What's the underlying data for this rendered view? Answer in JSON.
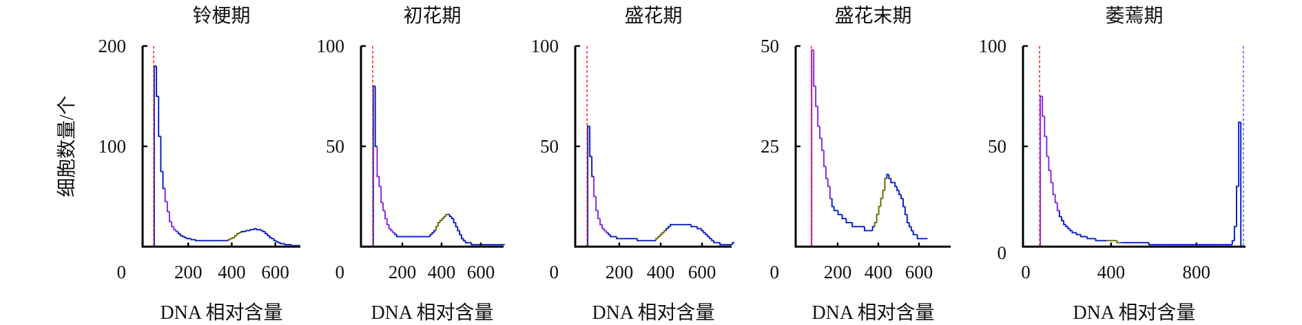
{
  "y_axis_label": "细胞数量/个",
  "colors": {
    "main": "#0a22c8",
    "g1": "#8a2be2",
    "s": "#6e6a00",
    "ref_line": "#ff2020",
    "ref_line2": "#4a6cf0",
    "axis": "#000000"
  },
  "chart_data": [
    {
      "type": "line",
      "title": "铃梗期",
      "xlabel": "DNA 相对含量",
      "ylabel": "细胞数量/个",
      "xlim": [
        0,
        715
      ],
      "ylim": [
        0,
        200
      ],
      "xticks": [
        200,
        400,
        600
      ],
      "xtick_labels": [
        "200",
        "400",
        "600"
      ],
      "yticks": [
        100,
        200
      ],
      "ytick_labels": [
        "100",
        "200"
      ],
      "origin_label": "0",
      "ref_line": 41,
      "x_start": 44,
      "bin": 10,
      "values": [
        180,
        150,
        110,
        75,
        58,
        45,
        35,
        25,
        20,
        17,
        15,
        13,
        11,
        10,
        9,
        8,
        8,
        7,
        7,
        6,
        6,
        6,
        6,
        6,
        6,
        6,
        6,
        6,
        6,
        6,
        6,
        6,
        6,
        6,
        7,
        8,
        9,
        11,
        13,
        14,
        15,
        15,
        16,
        16,
        17,
        17,
        18,
        17,
        17,
        16,
        15,
        13,
        11,
        9,
        8,
        6,
        5,
        4,
        3,
        3,
        2,
        2,
        2,
        1,
        1,
        1,
        1
      ],
      "segments": [
        {
          "from": 90,
          "to": 150,
          "color": "g1"
        },
        {
          "from": 380,
          "to": 440,
          "color": "s"
        }
      ]
    },
    {
      "type": "line",
      "title": "初花期",
      "xlabel": "DNA 相对含量",
      "ylabel": "",
      "xlim": [
        0,
        716
      ],
      "ylim": [
        0,
        100
      ],
      "xticks": [
        200,
        400,
        600
      ],
      "xtick_labels": [
        "200",
        "400",
        "600"
      ],
      "yticks": [
        50,
        100
      ],
      "ytick_labels": [
        "50",
        "100"
      ],
      "origin_label": "0",
      "ref_line": 49,
      "x_start": 52,
      "bin": 10,
      "values": [
        80,
        50,
        35,
        30,
        22,
        18,
        14,
        11,
        9,
        8,
        7,
        6,
        5,
        5,
        5,
        5,
        5,
        5,
        5,
        5,
        5,
        5,
        5,
        5,
        5,
        5,
        5,
        5,
        5,
        6,
        7,
        8,
        10,
        12,
        13,
        14,
        15,
        16,
        16,
        15,
        14,
        12,
        10,
        8,
        6,
        4,
        3,
        2,
        2,
        2,
        1,
        1,
        1,
        1,
        1,
        1,
        1,
        1,
        1,
        1,
        1,
        1,
        1,
        1,
        1,
        1,
        1
      ],
      "segments": [
        {
          "from": 70,
          "to": 160,
          "color": "g1"
        },
        {
          "from": 370,
          "to": 430,
          "color": "s"
        }
      ]
    },
    {
      "type": "line",
      "title": "盛花期",
      "xlabel": "DNA 相对含量",
      "ylabel": "",
      "xlim": [
        0,
        743
      ],
      "ylim": [
        0,
        100
      ],
      "xticks": [
        200,
        400,
        600
      ],
      "xtick_labels": [
        "200",
        "400",
        "600"
      ],
      "yticks": [
        50,
        100
      ],
      "ytick_labels": [
        "50",
        "100"
      ],
      "origin_label": "0",
      "ref_line": 44,
      "x_start": 47,
      "bin": 10,
      "values": [
        60,
        45,
        35,
        25,
        18,
        14,
        11,
        9,
        8,
        7,
        6,
        5,
        5,
        5,
        4,
        4,
        4,
        4,
        4,
        4,
        4,
        4,
        4,
        4,
        3,
        3,
        3,
        3,
        3,
        3,
        3,
        3,
        3,
        4,
        5,
        6,
        7,
        8,
        9,
        10,
        11,
        11,
        11,
        11,
        11,
        11,
        11,
        11,
        11,
        11,
        10,
        10,
        10,
        9,
        9,
        8,
        7,
        6,
        5,
        4,
        3,
        2,
        2,
        2,
        1,
        1,
        1,
        1,
        1,
        1,
        2
      ],
      "segments": [
        {
          "from": 70,
          "to": 140,
          "color": "g1"
        },
        {
          "from": 370,
          "to": 420,
          "color": "s"
        }
      ]
    },
    {
      "type": "line",
      "title": "盛花末期",
      "xlabel": "DNA 相对含量",
      "ylabel": "",
      "xlim": [
        0,
        756
      ],
      "ylim": [
        0,
        50
      ],
      "xticks": [
        200,
        400,
        600
      ],
      "xtick_labels": [
        "200",
        "400",
        "600"
      ],
      "yticks": [
        25,
        50
      ],
      "ytick_labels": [
        "25",
        "50"
      ],
      "origin_label": "0",
      "ref_line": 70,
      "x_start": 72,
      "bin": 10,
      "values": [
        49,
        40,
        35,
        30,
        27,
        24,
        20,
        17,
        15,
        12,
        10,
        9,
        9,
        8,
        8,
        7,
        7,
        6,
        6,
        6,
        5,
        5,
        5,
        5,
        5,
        5,
        4,
        4,
        4,
        4,
        5,
        6,
        8,
        10,
        12,
        14,
        17,
        18,
        17,
        16,
        16,
        15,
        14,
        13,
        12,
        10,
        8,
        6,
        5,
        4,
        3,
        3,
        2,
        2,
        2,
        2,
        2
      ],
      "segments": [
        {
          "from": 72,
          "to": 170,
          "color": "g1"
        },
        {
          "from": 380,
          "to": 440,
          "color": "s"
        }
      ]
    },
    {
      "type": "line",
      "title": "萎蔫期",
      "xlabel": "DNA 相对含量",
      "ylabel": "",
      "xlim": [
        0,
        1030
      ],
      "ylim": [
        0,
        100
      ],
      "xticks": [
        0,
        400,
        800
      ],
      "xtick_labels": [
        "0",
        "400",
        "800"
      ],
      "yticks": [
        0,
        50,
        100
      ],
      "ytick_labels": [
        "0",
        "50",
        "100"
      ],
      "origin_label": "",
      "ref_line": 65,
      "ref_line2": 1020,
      "x_start": 68,
      "bin": 10,
      "values": [
        75,
        65,
        55,
        45,
        38,
        32,
        26,
        22,
        18,
        15,
        13,
        11,
        10,
        9,
        8,
        7,
        7,
        6,
        6,
        5,
        5,
        5,
        4,
        4,
        4,
        4,
        3,
        3,
        3,
        3,
        3,
        3,
        3,
        3,
        3,
        3,
        2,
        2,
        2,
        2,
        2,
        2,
        2,
        2,
        2,
        2,
        2,
        2,
        2,
        2,
        2,
        1,
        1,
        1,
        1,
        1,
        1,
        1,
        1,
        1,
        1,
        1,
        1,
        1,
        1,
        1,
        1,
        1,
        1,
        1,
        1,
        1,
        1,
        1,
        1,
        1,
        1,
        1,
        1,
        1,
        1,
        1,
        1,
        1,
        1,
        1,
        1,
        1,
        1,
        1,
        3,
        10,
        30,
        62,
        0
      ],
      "segments": [
        {
          "from": 68,
          "to": 150,
          "color": "g1"
        },
        {
          "from": 370,
          "to": 440,
          "color": "s"
        }
      ]
    }
  ]
}
